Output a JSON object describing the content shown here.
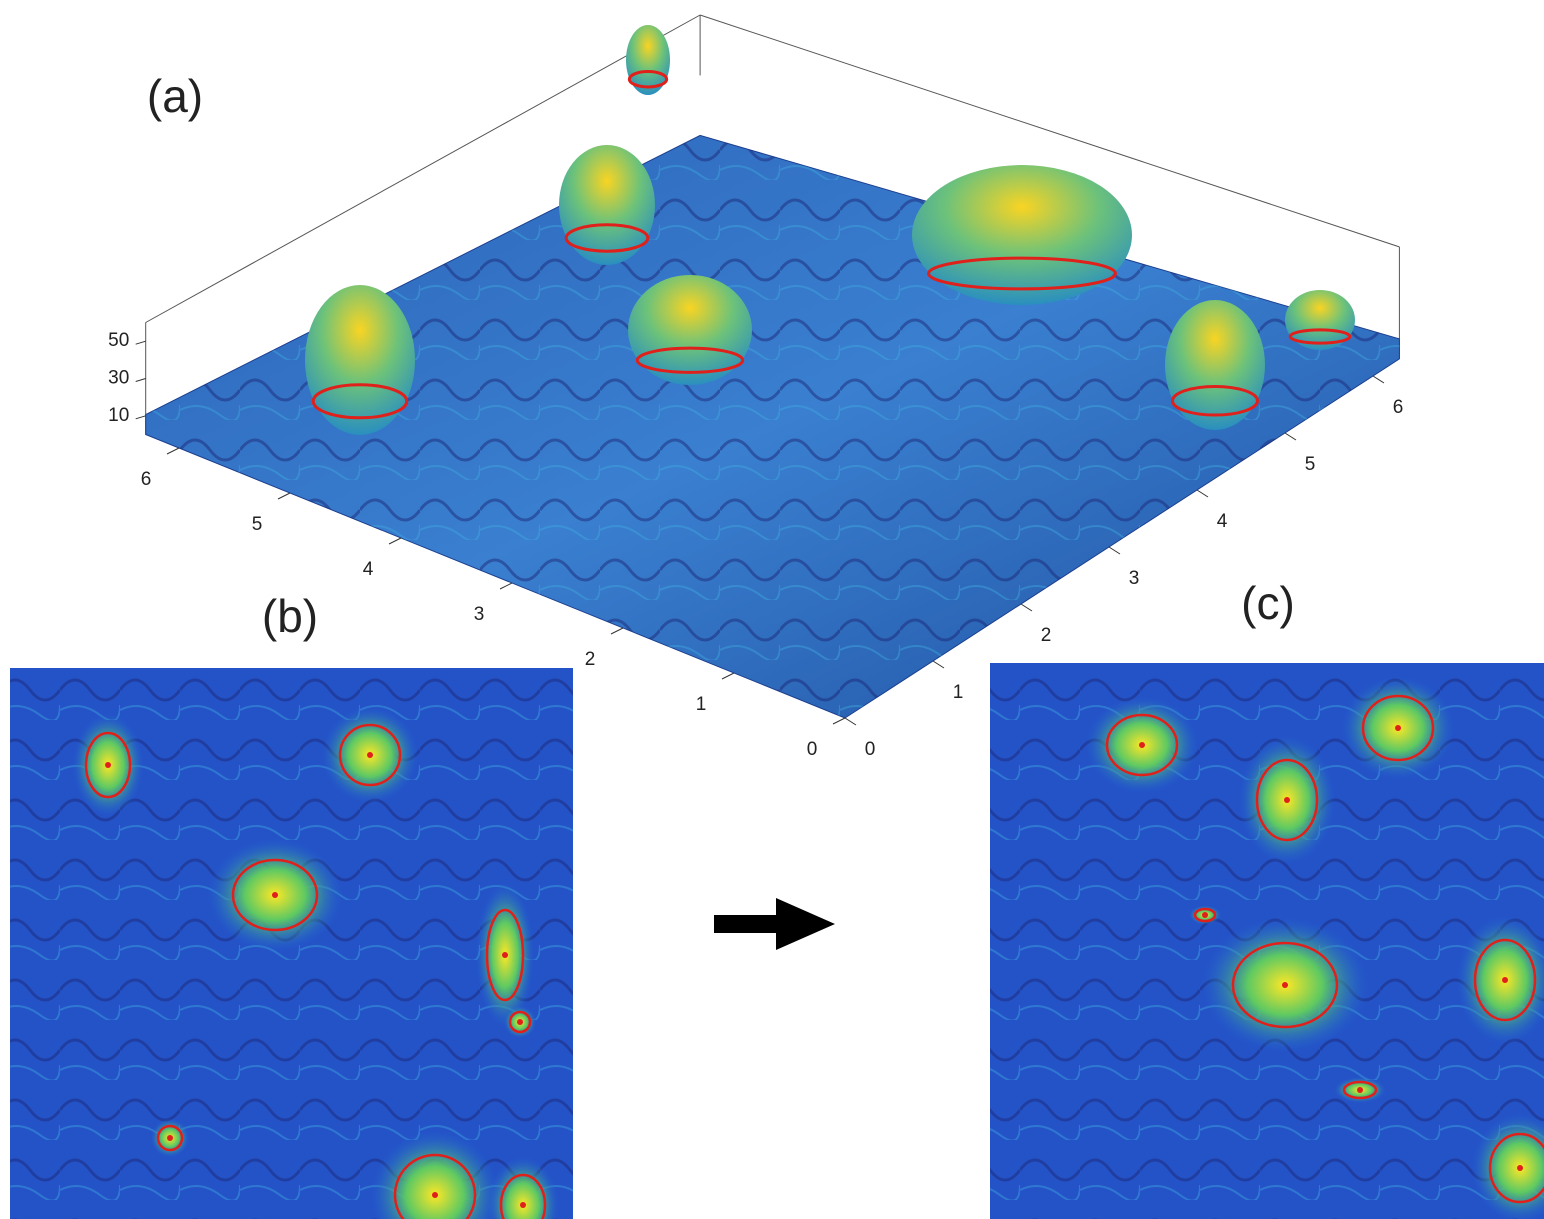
{
  "chart_data": [
    {
      "type": "surface3d",
      "label": "(a)",
      "xlim": [
        0,
        6.3
      ],
      "ylim": [
        0,
        6.3
      ],
      "zlim": [
        0,
        60
      ],
      "xticks": [
        0,
        1,
        2,
        3,
        4,
        5,
        6
      ],
      "yticks": [
        0,
        1,
        2,
        3,
        4,
        5,
        6
      ],
      "zticks": [
        10,
        30,
        50
      ]
    },
    {
      "type": "heatmap",
      "label": "(b)"
    },
    {
      "type": "heatmap",
      "label": "(c)"
    }
  ]
}
